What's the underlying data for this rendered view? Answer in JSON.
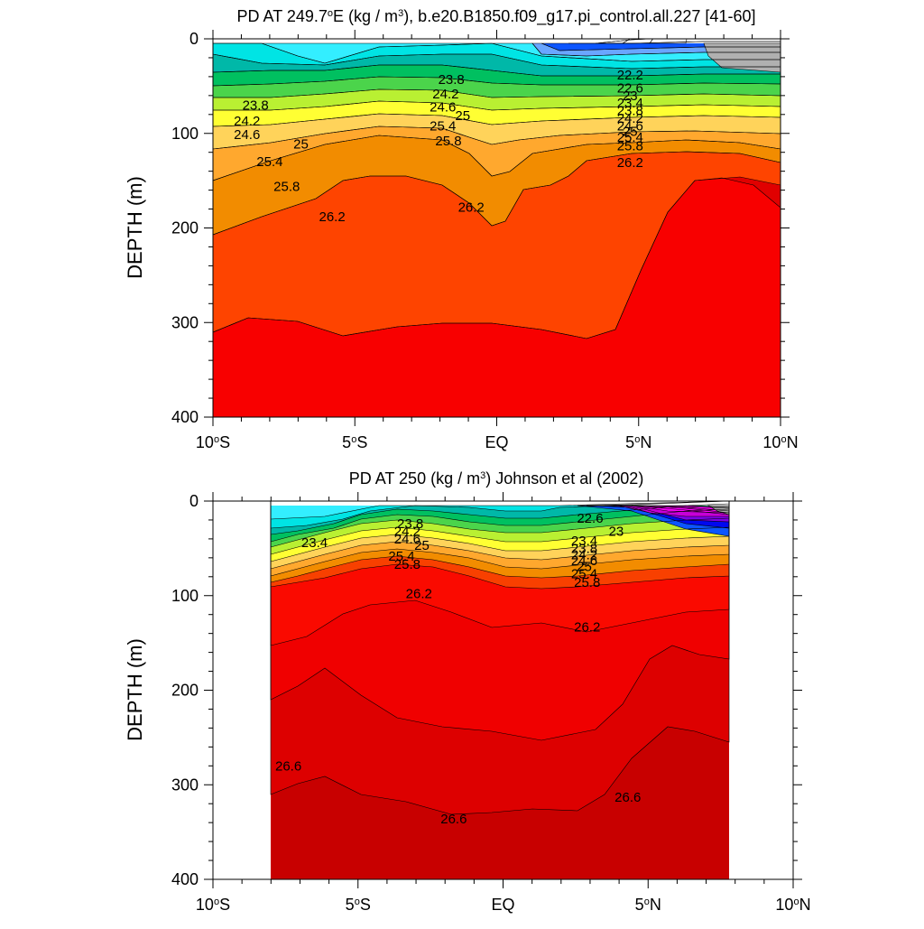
{
  "chart_data": [
    {
      "type": "contour",
      "title_parts": [
        "PD AT 249.7",
        "o",
        "E (kg / m",
        "3",
        "), b.e20.B1850.f09_g17.pi_control.all.227 [41-60]"
      ],
      "ylabel": "DEPTH (m)",
      "xlim": [
        -10,
        10
      ],
      "ylim": [
        400,
        0
      ],
      "y_ticks": [
        0,
        100,
        200,
        300,
        400
      ],
      "x_ticks": [
        {
          "value": -10,
          "parts": [
            "10",
            "o",
            "S"
          ]
        },
        {
          "value": -5,
          "parts": [
            "5",
            "o",
            "S"
          ]
        },
        {
          "value": 0,
          "parts": [
            "EQ"
          ]
        },
        {
          "value": 5,
          "parts": [
            "5",
            "o",
            "N"
          ]
        },
        {
          "value": 10,
          "parts": [
            "10",
            "o",
            "N"
          ]
        }
      ],
      "data_x_range": [
        -10,
        10
      ],
      "labels": [
        {
          "text": "23.8",
          "x": -8.5,
          "y": 70
        },
        {
          "text": "24.2",
          "x": -8.8,
          "y": 87
        },
        {
          "text": "24.6",
          "x": -8.8,
          "y": 101
        },
        {
          "text": "25",
          "x": -6.9,
          "y": 111
        },
        {
          "text": "25.4",
          "x": -8.0,
          "y": 130
        },
        {
          "text": "25.8",
          "x": -7.4,
          "y": 156
        },
        {
          "text": "26.2",
          "x": -5.8,
          "y": 188
        },
        {
          "text": "23.8",
          "x": -1.6,
          "y": 43
        },
        {
          "text": "24.2",
          "x": -1.8,
          "y": 58
        },
        {
          "text": "24.6",
          "x": -1.9,
          "y": 72
        },
        {
          "text": "25",
          "x": -1.2,
          "y": 81
        },
        {
          "text": "25.4",
          "x": -1.9,
          "y": 92
        },
        {
          "text": "25.8",
          "x": -1.7,
          "y": 108
        },
        {
          "text": "26.2",
          "x": -0.9,
          "y": 178
        },
        {
          "text": "22.2",
          "x": 4.7,
          "y": 38
        },
        {
          "text": "22.6",
          "x": 4.7,
          "y": 52
        },
        {
          "text": "23",
          "x": 4.7,
          "y": 60
        },
        {
          "text": "23.4",
          "x": 4.7,
          "y": 68
        },
        {
          "text": "23.8",
          "x": 4.7,
          "y": 76
        },
        {
          "text": "24.2",
          "x": 4.7,
          "y": 84
        },
        {
          "text": "24.6",
          "x": 4.7,
          "y": 92
        },
        {
          "text": "25",
          "x": 4.7,
          "y": 98
        },
        {
          "text": "25.4",
          "x": 4.7,
          "y": 104
        },
        {
          "text": "25.8",
          "x": 4.7,
          "y": 113
        },
        {
          "text": "26.2",
          "x": 4.7,
          "y": 131
        }
      ]
    },
    {
      "type": "contour",
      "title_parts": [
        "PD AT 250 (kg / m",
        "3",
        ") Johnson et al (2002)"
      ],
      "ylabel": "DEPTH (m)",
      "xlim": [
        -10,
        10
      ],
      "ylim": [
        400,
        0
      ],
      "y_ticks": [
        0,
        100,
        200,
        300,
        400
      ],
      "x_ticks": [
        {
          "value": -10,
          "parts": [
            "10",
            "o",
            "S"
          ]
        },
        {
          "value": -5,
          "parts": [
            "5",
            "o",
            "S"
          ]
        },
        {
          "value": 0,
          "parts": [
            "EQ"
          ]
        },
        {
          "value": 5,
          "parts": [
            "5",
            "o",
            "N"
          ]
        },
        {
          "value": 10,
          "parts": [
            "10",
            "o",
            "N"
          ]
        }
      ],
      "data_x_range": [
        -8,
        8.2
      ],
      "labels": [
        {
          "text": "23.4",
          "x": -6.5,
          "y": 44
        },
        {
          "text": "23.8",
          "x": -3.2,
          "y": 24
        },
        {
          "text": "24.2",
          "x": -3.3,
          "y": 32
        },
        {
          "text": "24.6",
          "x": -3.3,
          "y": 40
        },
        {
          "text": "25",
          "x": -2.8,
          "y": 47
        },
        {
          "text": "25.4",
          "x": -3.5,
          "y": 58
        },
        {
          "text": "25.8",
          "x": -3.3,
          "y": 67
        },
        {
          "text": "26.2",
          "x": -2.9,
          "y": 98
        },
        {
          "text": "22.6",
          "x": 3.0,
          "y": 18
        },
        {
          "text": "23",
          "x": 3.9,
          "y": 32
        },
        {
          "text": "23.4",
          "x": 2.8,
          "y": 42
        },
        {
          "text": "23.8",
          "x": 2.8,
          "y": 50
        },
        {
          "text": "24.2",
          "x": 2.8,
          "y": 57
        },
        {
          "text": "24.6",
          "x": 2.8,
          "y": 63
        },
        {
          "text": "25",
          "x": 2.8,
          "y": 69
        },
        {
          "text": "25.4",
          "x": 2.8,
          "y": 77
        },
        {
          "text": "25.8",
          "x": 2.9,
          "y": 86
        },
        {
          "text": "26.2",
          "x": 2.9,
          "y": 133
        },
        {
          "text": "26.6",
          "x": -7.4,
          "y": 280
        },
        {
          "text": "26.6",
          "x": -1.7,
          "y": 336
        },
        {
          "text": "26.6",
          "x": 4.3,
          "y": 313
        }
      ]
    }
  ]
}
